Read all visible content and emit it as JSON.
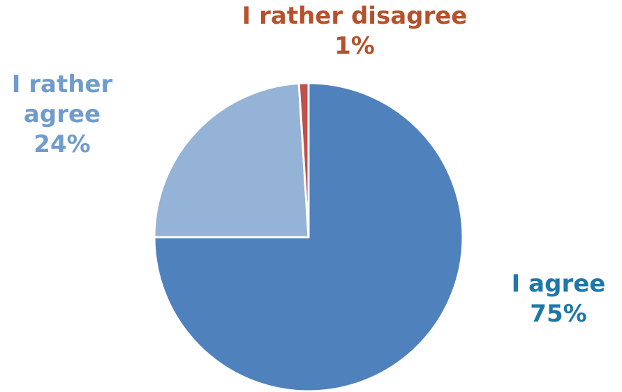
{
  "chart_data": {
    "type": "pie",
    "title": "",
    "slices": [
      {
        "label": "I agree",
        "value": 75,
        "value_label": "75%",
        "color": "#4f81bd",
        "label_color": "#1f77a8"
      },
      {
        "label": "I rather agree",
        "label_lines": [
          "I rather",
          "agree"
        ],
        "value": 24,
        "value_label": "24%",
        "color": "#95b3d7",
        "label_color": "#6f9ccc"
      },
      {
        "label": "I rather disagree",
        "value": 1,
        "value_label": "1%",
        "color": "#c0504d",
        "label_color": "#b5512c"
      }
    ],
    "start_angle_deg": 0,
    "direction": "clockwise",
    "legend": "none",
    "slice_border_color": "#ffffff"
  }
}
